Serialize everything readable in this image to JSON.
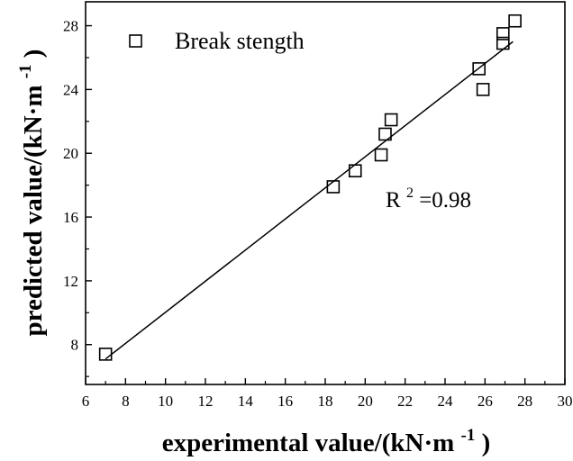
{
  "chart_data": {
    "type": "scatter",
    "xlabel_main": "experimental value/(kN·m",
    "xlabel_sup": "-1",
    "xlabel_end": ")",
    "ylabel_main": "predicted value/(kN·m",
    "ylabel_sup": "-1",
    "ylabel_end": ")",
    "xlim": [
      6,
      30
    ],
    "ylim": [
      5.5,
      29.5
    ],
    "xticks": [
      6,
      8,
      10,
      12,
      14,
      16,
      18,
      20,
      22,
      24,
      26,
      28,
      30
    ],
    "yticks": [
      8,
      12,
      16,
      20,
      24,
      28
    ],
    "series": [
      {
        "name": "Break stength",
        "marker": "open-square",
        "x": [
          7.0,
          18.4,
          19.5,
          20.8,
          21.0,
          21.3,
          25.7,
          25.9,
          26.9,
          26.9,
          27.5
        ],
        "y": [
          7.4,
          17.9,
          18.9,
          19.9,
          21.2,
          22.1,
          25.3,
          24.0,
          26.9,
          27.5,
          28.3
        ]
      }
    ],
    "fit_line": {
      "x": [
        7.0,
        27.4
      ],
      "y": [
        7.1,
        27.0
      ]
    },
    "annotation": {
      "base": "R",
      "sup": "2",
      "rest": "=0.98"
    },
    "legend_position": "top-left",
    "grid": false
  }
}
